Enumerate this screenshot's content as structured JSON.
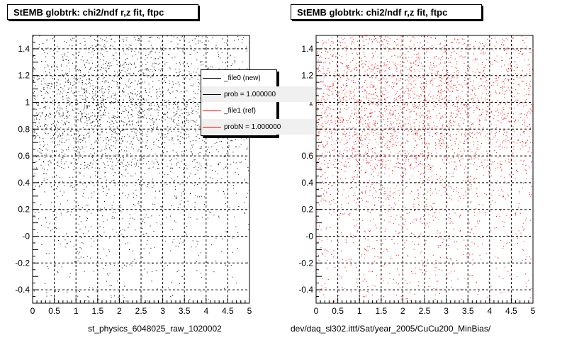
{
  "colors": {
    "file0": "#000000",
    "file1": "#ff0000",
    "grid": "#000000"
  },
  "chart_data": [
    {
      "type": "scatter",
      "title": "StEMB globtrk: chi2/ndf r,z fit, ftpc",
      "xlabel": "st_physics_6048025_raw_1020002",
      "ylabel": "",
      "xlim": [
        0,
        5
      ],
      "ylim": [
        -0.5,
        1.5
      ],
      "x_ticks": [
        "0",
        "0.5",
        "1",
        "1.5",
        "2",
        "2.5",
        "3",
        "3.5",
        "4",
        "4.5",
        "5"
      ],
      "y_ticks": [
        "-0.4",
        "-0.2",
        "-0",
        "0.2",
        "0.4",
        "0.6",
        "0.8",
        "1",
        "1.2",
        "1.4"
      ],
      "grid": true,
      "legend_position": "top-right",
      "legend": [
        {
          "label": "_file0 (new)",
          "color": "#000000"
        },
        {
          "label": "prob = 1.000000",
          "color": "#000000"
        },
        {
          "label": "_file1 (ref)",
          "color": "#ff0000"
        },
        {
          "label": "probN = 1.000000",
          "color": "#ff0000"
        }
      ],
      "series": [
        {
          "color": "#000000",
          "density": [
            [
              0.4,
              0.4,
              0.5,
              0.6,
              0.5,
              0.5,
              0.4,
              0.4,
              0.3,
              0.3
            ],
            [
              0.7,
              0.8,
              1.0,
              0.9,
              0.9,
              0.8,
              0.6,
              0.5,
              0.5,
              0.4
            ],
            [
              0.9,
              1.0,
              1.2,
              1.2,
              1.1,
              0.9,
              0.8,
              0.7,
              0.6,
              0.5
            ],
            [
              0.9,
              1.0,
              1.2,
              1.1,
              1.0,
              0.9,
              0.8,
              0.7,
              0.6,
              0.5
            ],
            [
              0.6,
              0.7,
              0.8,
              0.8,
              0.7,
              0.6,
              0.5,
              0.5,
              0.4,
              0.3
            ],
            [
              0.3,
              0.35,
              0.4,
              0.4,
              0.4,
              0.3,
              0.3,
              0.25,
              0.2,
              0.2
            ],
            [
              0.2,
              0.25,
              0.3,
              0.3,
              0.3,
              0.25,
              0.2,
              0.2,
              0.15,
              0.15
            ],
            [
              0.15,
              0.2,
              0.25,
              0.25,
              0.2,
              0.2,
              0.15,
              0.15,
              0.1,
              0.1
            ],
            [
              0.1,
              0.15,
              0.2,
              0.2,
              0.15,
              0.15,
              0.1,
              0.1,
              0.1,
              0.05
            ],
            [
              0.08,
              0.1,
              0.15,
              0.15,
              0.1,
              0.1,
              0.08,
              0.05,
              0.05,
              0.05
            ]
          ]
        }
      ]
    },
    {
      "type": "scatter",
      "title": "StEMB globtrk: chi2/ndf r,z fit, ftpc",
      "xlabel": "dev/daq_sl302.ittf/Sat/year_2005/CuCu200_MinBias/",
      "ylabel": "",
      "xlim": [
        0,
        5
      ],
      "ylim": [
        -0.5,
        1.5
      ],
      "x_ticks": [
        "0",
        "0.5",
        "1",
        "1.5",
        "2",
        "2.5",
        "3",
        "3.5",
        "4",
        "4.5",
        "5"
      ],
      "y_ticks": [
        "-0.4",
        "-0.2",
        "-0",
        "0.2",
        "0.4",
        "0.6",
        "0.8",
        "1",
        "1.2",
        "1.4"
      ],
      "grid": true,
      "series": [
        {
          "color": "#ff0000",
          "density": [
            [
              0.6,
              0.6,
              0.7,
              0.7,
              0.7,
              0.6,
              0.6,
              0.5,
              0.5,
              0.5
            ],
            [
              0.9,
              1.0,
              1.0,
              1.0,
              1.0,
              0.9,
              0.9,
              0.8,
              0.7,
              0.7
            ],
            [
              1.0,
              1.1,
              1.2,
              1.1,
              1.1,
              1.0,
              1.0,
              0.9,
              0.8,
              0.7
            ],
            [
              1.0,
              1.1,
              1.1,
              1.1,
              1.0,
              1.0,
              0.9,
              0.8,
              0.8,
              0.7
            ],
            [
              0.8,
              0.9,
              0.9,
              0.9,
              0.9,
              0.8,
              0.7,
              0.7,
              0.6,
              0.5
            ],
            [
              0.5,
              0.5,
              0.55,
              0.55,
              0.5,
              0.5,
              0.45,
              0.4,
              0.35,
              0.3
            ],
            [
              0.35,
              0.4,
              0.4,
              0.4,
              0.4,
              0.35,
              0.3,
              0.3,
              0.25,
              0.2
            ],
            [
              0.3,
              0.3,
              0.35,
              0.35,
              0.3,
              0.3,
              0.25,
              0.25,
              0.2,
              0.2
            ],
            [
              0.25,
              0.25,
              0.3,
              0.3,
              0.25,
              0.25,
              0.2,
              0.2,
              0.15,
              0.15
            ],
            [
              0.2,
              0.2,
              0.25,
              0.25,
              0.2,
              0.2,
              0.15,
              0.15,
              0.1,
              0.1
            ]
          ]
        }
      ]
    }
  ]
}
